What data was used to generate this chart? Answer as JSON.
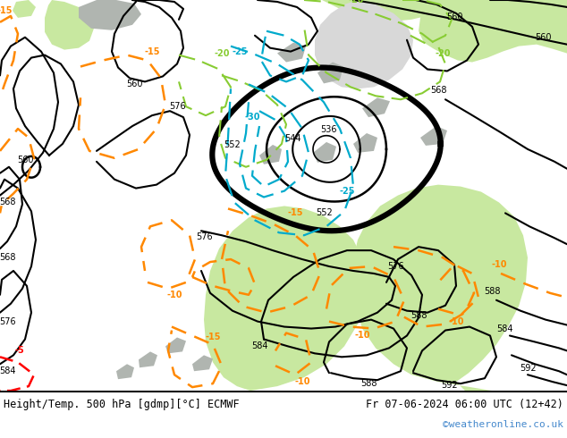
{
  "title_left": "Height/Temp. 500 hPa [gdmp][°C] ECMWF",
  "title_right": "Fr 07-06-2024 06:00 UTC (12+42)",
  "watermark": "©weatheronline.co.uk",
  "bg_green": "#c8e8a0",
  "bg_gray": "#e0e0e0",
  "watermark_color": "#4488cc",
  "figsize": [
    6.34,
    4.9
  ],
  "dpi": 100
}
